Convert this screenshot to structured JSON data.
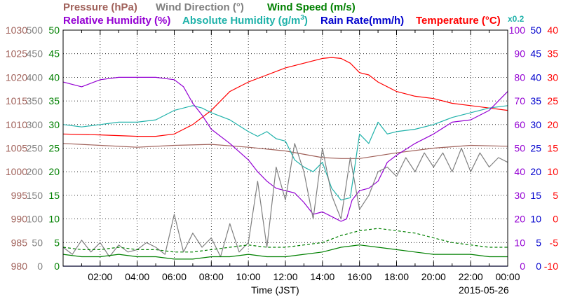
{
  "chart_data": {
    "type": "line",
    "date_label": "2015-05-26",
    "xlabel": "Time (JST)",
    "x_ticks": [
      "02:00",
      "04:00",
      "06:00",
      "08:00",
      "10:00",
      "12:00",
      "14:00",
      "16:00",
      "18:00",
      "20:00",
      "22:00",
      "00:00"
    ],
    "x_range": [
      0,
      24
    ],
    "headers": {
      "row1": [
        {
          "text": "Pressure (hPa)",
          "color": "#a0615a"
        },
        {
          "text": "Wind Direction (°)",
          "color": "#808080"
        },
        {
          "text": "Wind Speed (m/s)",
          "color": "#008000"
        }
      ],
      "row2": [
        {
          "text": "Relative Humidity (%)",
          "color": "#9400d3"
        },
        {
          "text": "Absolute Humidity (g/m",
          "sup": "3",
          "close": ")",
          "color": "#20b2aa"
        },
        {
          "text": "Rain Rate(mm/h)",
          "color": "#0000cd"
        },
        {
          "text": "Temperature (°C)",
          "color": "#ff0000"
        }
      ],
      "x02": "x0.2"
    },
    "axes": {
      "pressure": {
        "color": "#a0615a",
        "ticks": [
          "1030",
          "1025",
          "1020",
          "1015",
          "1010",
          "1005",
          "1000",
          "995",
          "990",
          "985",
          "980"
        ],
        "range": [
          980,
          1030
        ]
      },
      "wind_direction": {
        "color": "#808080",
        "ticks": [
          "500",
          "450",
          "400",
          "350",
          "300",
          "250",
          "200",
          "150",
          "100",
          "50",
          "0"
        ],
        "range": [
          0,
          500
        ]
      },
      "wind_speed": {
        "color": "#008000",
        "ticks": [
          "50",
          "45",
          "40",
          "35",
          "30",
          "25",
          "20",
          "15",
          "10",
          "5",
          "0"
        ],
        "range": [
          0,
          50
        ]
      },
      "relative_humidity": {
        "color": "#9400d3",
        "ticks": [
          "100",
          "90",
          "80",
          "70",
          "60",
          "50",
          "40",
          "30",
          "20",
          "10",
          "0"
        ],
        "range": [
          0,
          100
        ]
      },
      "rain_rate": {
        "color": "#0000cd",
        "ticks": [
          "50",
          "45",
          "40",
          "35",
          "30",
          "25",
          "20",
          "15",
          "10",
          "5",
          "0"
        ],
        "range": [
          0,
          50
        ]
      },
      "temperature": {
        "color": "#ff0000",
        "ticks": [
          "40",
          "35",
          "30",
          "25",
          "20",
          "15",
          "10",
          "5",
          "0",
          "-5",
          "-10"
        ],
        "range": [
          -10,
          40
        ]
      }
    },
    "series": [
      {
        "name": "Pressure (hPa)",
        "color": "#a0615a",
        "axis": "pressure",
        "x": [
          0,
          2,
          4,
          6,
          8,
          10,
          12,
          14,
          15,
          16,
          17,
          18,
          20,
          22,
          24
        ],
        "y": [
          1006,
          1005.6,
          1005.2,
          1005.6,
          1005.8,
          1005.2,
          1004.4,
          1003,
          1002.8,
          1002.8,
          1003.4,
          1004,
          1005,
          1005.6,
          1005.4
        ]
      },
      {
        "name": "Temperature (°C)",
        "color": "#ff0000",
        "axis": "temperature",
        "x": [
          0,
          2,
          4,
          5,
          6,
          7,
          8,
          9,
          10,
          11,
          12,
          13,
          14,
          14.5,
          15,
          15.5,
          16,
          16.5,
          17,
          18,
          19,
          20,
          21,
          22,
          23,
          24
        ],
        "y": [
          18,
          17.8,
          17.5,
          17.5,
          18,
          20,
          23,
          27,
          29,
          30.5,
          32,
          33,
          34,
          34.2,
          34,
          33,
          31,
          30.5,
          29,
          27,
          26,
          25.5,
          24.5,
          24,
          23.5,
          23
        ]
      },
      {
        "name": "Absolute Humidity (g/m3)",
        "color": "#20b2aa",
        "axis": "relative_humidity",
        "scale_note": "x0.2",
        "x": [
          0,
          1,
          2,
          3,
          4,
          5,
          6,
          7,
          7.5,
          8,
          9,
          10,
          10.5,
          11,
          11.5,
          12,
          12.5,
          13,
          13.5,
          14,
          14.5,
          15,
          15.5,
          16,
          16.5,
          17,
          17.5,
          18,
          19,
          20,
          21,
          22,
          23,
          24
        ],
        "y": [
          60,
          59,
          60,
          61,
          61,
          62,
          66,
          68,
          67,
          65,
          62,
          57,
          55,
          57,
          54,
          53,
          45,
          42,
          40,
          44,
          33,
          28,
          29,
          56,
          52,
          61,
          56,
          57,
          58,
          60,
          63,
          65,
          67,
          68
        ]
      },
      {
        "name": "Relative Humidity (%)",
        "color": "#9400d3",
        "axis": "relative_humidity",
        "x": [
          0,
          1,
          2,
          3,
          4,
          5,
          6,
          6.5,
          7,
          7.5,
          8,
          9,
          10,
          10.5,
          11,
          11.5,
          12,
          12.5,
          13,
          13.5,
          14,
          14.5,
          15,
          15.3,
          15.6,
          16,
          16.5,
          17,
          17.5,
          18,
          19,
          20,
          21,
          22,
          23,
          24
        ],
        "y": [
          78,
          76,
          79,
          80,
          80,
          80,
          79,
          76,
          69,
          64,
          58,
          52,
          45,
          40,
          36,
          33,
          32,
          31,
          27,
          22,
          23,
          21,
          19,
          20,
          28,
          32,
          33,
          36,
          44,
          47,
          52,
          56,
          61,
          62,
          66,
          74
        ]
      },
      {
        "name": "Wind Direction (°)",
        "color": "#808080",
        "axis": "wind_direction",
        "x": [
          0,
          0.5,
          1,
          1.5,
          2,
          2.5,
          3,
          3.5,
          4,
          4.5,
          5,
          5.5,
          6,
          6.5,
          7,
          7.5,
          8,
          8.5,
          9,
          9.5,
          10,
          10.5,
          11,
          11.5,
          12,
          12.5,
          13,
          13.5,
          14,
          14.5,
          15,
          15.5,
          16,
          16.5,
          17,
          17.5,
          18,
          18.5,
          19,
          19.5,
          20,
          20.5,
          21,
          21.5,
          22,
          22.5,
          23,
          23.5,
          24
        ],
        "y": [
          40,
          25,
          55,
          30,
          50,
          20,
          45,
          30,
          35,
          50,
          40,
          25,
          110,
          30,
          70,
          40,
          60,
          20,
          90,
          30,
          50,
          180,
          40,
          210,
          140,
          260,
          200,
          100,
          250,
          150,
          100,
          230,
          120,
          150,
          200,
          210,
          190,
          230,
          200,
          240,
          210,
          240,
          200,
          250,
          200,
          240,
          210,
          230,
          220
        ]
      },
      {
        "name": "Wind Speed (m/s)",
        "color": "#008000",
        "axis": "wind_speed",
        "x": [
          0,
          1,
          2,
          3,
          4,
          5,
          6,
          7,
          8,
          9,
          10,
          11,
          12,
          13,
          14,
          15,
          16,
          17,
          18,
          19,
          20,
          21,
          22,
          23,
          24
        ],
        "y": [
          2.5,
          2,
          2,
          2.5,
          2,
          2,
          1.5,
          1.5,
          2,
          2,
          2.5,
          2,
          2,
          2.5,
          3,
          4,
          4.5,
          4,
          3.5,
          3,
          2.5,
          2.5,
          2.5,
          2,
          2
        ]
      },
      {
        "name": "Wind Speed gust (m/s)",
        "color": "#008000",
        "axis": "wind_speed",
        "dashed": true,
        "x": [
          0,
          1,
          2,
          3,
          4,
          5,
          6,
          7,
          8,
          9,
          10,
          11,
          12,
          13,
          14,
          15,
          16,
          17,
          18,
          19,
          20,
          21,
          22,
          23,
          24
        ],
        "y": [
          4,
          3.5,
          3.5,
          4,
          3.5,
          3.5,
          3,
          3,
          3.5,
          4,
          4.5,
          4,
          4,
          4.5,
          5,
          6.5,
          7.5,
          8,
          7.5,
          7,
          6,
          5,
          4.5,
          4,
          4
        ]
      },
      {
        "name": "Rain Rate(mm/h)",
        "color": "#0000cd",
        "axis": "rain_rate",
        "x": [
          0,
          24
        ],
        "y": [
          0,
          0
        ]
      }
    ]
  }
}
